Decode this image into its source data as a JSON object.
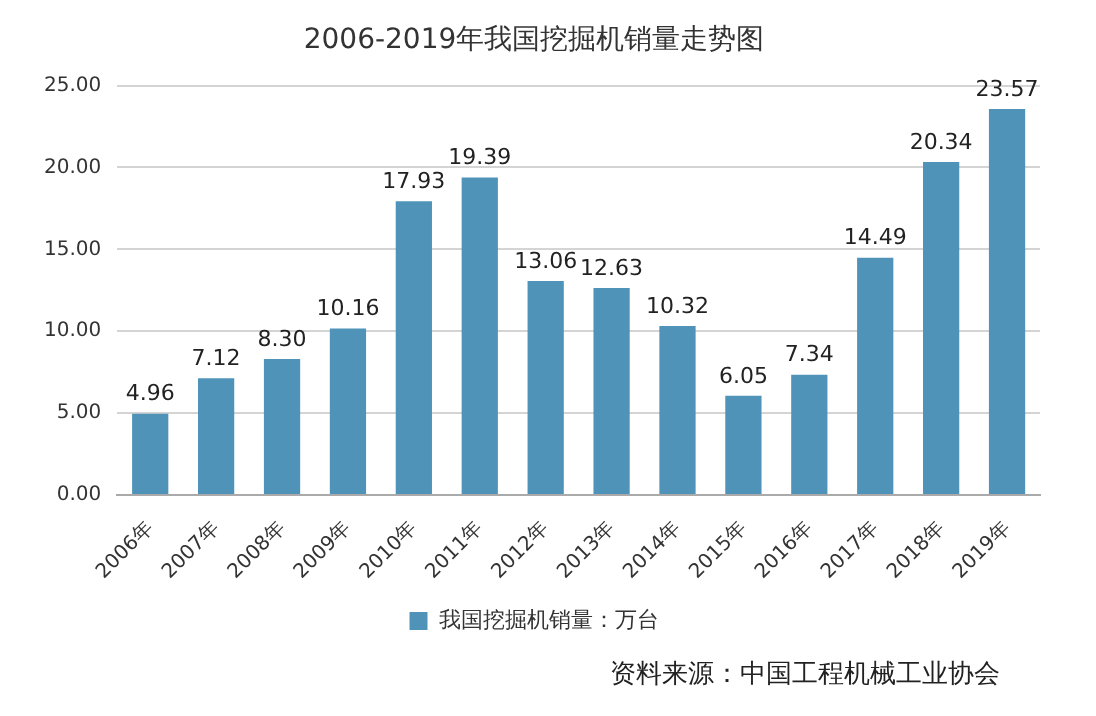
{
  "chart_data": {
    "type": "bar",
    "title": "2006-2019年我国挖掘机销量走势图",
    "categories": [
      "2006年",
      "2007年",
      "2008年",
      "2009年",
      "2010年",
      "2011年",
      "2012年",
      "2013年",
      "2014年",
      "2015年",
      "2016年",
      "2017年",
      "2018年",
      "2019年"
    ],
    "series": [
      {
        "name": "我国挖掘机销量：万台",
        "color": "#4f94b8",
        "values": [
          4.96,
          7.12,
          8.3,
          10.16,
          17.93,
          19.39,
          13.06,
          12.63,
          10.32,
          6.05,
          7.34,
          14.49,
          20.34,
          23.57
        ],
        "value_labels": [
          "4.96",
          "7.12",
          "8.30",
          "10.16",
          "17.93",
          "19.39",
          "13.06",
          "12.63",
          "10.32",
          "6.05",
          "7.34",
          "14.49",
          "20.34",
          "23.57"
        ]
      }
    ],
    "ylim": [
      0,
      25
    ],
    "yticks": [
      {
        "value": 0,
        "label": "0.00"
      },
      {
        "value": 5,
        "label": "5.00"
      },
      {
        "value": 10,
        "label": "10.00"
      },
      {
        "value": 15,
        "label": "15.00"
      },
      {
        "value": 20,
        "label": "20.00"
      },
      {
        "value": 25,
        "label": "25.00"
      }
    ],
    "grid": "y",
    "legend": "bottom",
    "annotations": [
      "资料来源：中国工程机械工业协会"
    ]
  }
}
